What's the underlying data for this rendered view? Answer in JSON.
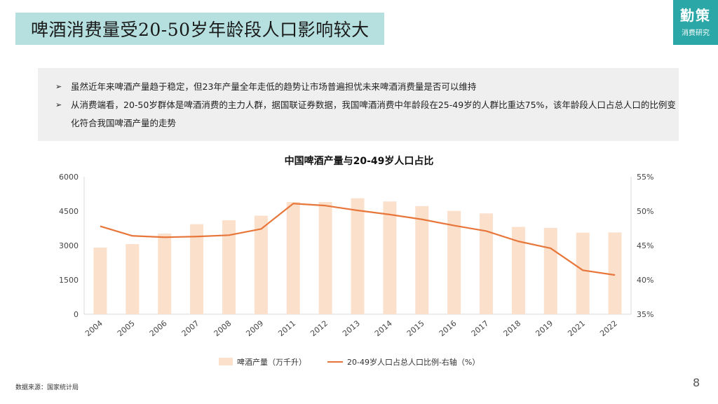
{
  "header": {
    "title": "啤酒消费量受20-50岁年龄段人口影响较大",
    "logo_big": "勤策",
    "logo_small": "消费研究"
  },
  "summary": {
    "bullets": [
      {
        "arrow": "➢",
        "text": "虽然近年来啤酒产量趋于稳定，但23年产量全年走低的趋势让市场普遍担忧未来啤酒消费量是否可以维持"
      },
      {
        "arrow": "➢",
        "text": "从消费端看，20-50岁群体是啤酒消费的主力人群，据国联证券数据，我国啤酒消费中年龄段在25-49岁的人群比重达75%，该年龄段人口占总人口的比例变化符合我国啤酒产量的走势"
      }
    ]
  },
  "chart_data": {
    "type": "bar+line",
    "title": "中国啤酒产量与20-49岁人口占比",
    "categories": [
      "2004",
      "2005",
      "2006",
      "2007",
      "2008",
      "2009",
      "2011",
      "2012",
      "2013",
      "2014",
      "2015",
      "2016",
      "2017",
      "2018",
      "2019",
      "2021",
      "2022"
    ],
    "series": [
      {
        "name": "啤酒产量（万千升）",
        "type": "bar",
        "axis": "left",
        "color": "#fbe0cc",
        "values": [
          2910,
          3060,
          3520,
          3930,
          4100,
          4300,
          4900,
          4900,
          5060,
          4920,
          4720,
          4510,
          4400,
          3810,
          3770,
          3560,
          3570
        ]
      },
      {
        "name": "20-49岁人口占总人口比例-右轴（%）",
        "type": "line",
        "axis": "right",
        "color": "#e8763a",
        "values": [
          47.8,
          46.4,
          46.2,
          46.3,
          46.5,
          47.4,
          51.1,
          50.8,
          50.1,
          49.5,
          48.8,
          47.9,
          47.1,
          45.6,
          44.6,
          41.4,
          40.7
        ]
      }
    ],
    "y_left": {
      "min": 0,
      "max": 6000,
      "ticks": [
        "0",
        "1500",
        "3000",
        "4500",
        "6000"
      ]
    },
    "y_right": {
      "min": 35,
      "max": 55,
      "ticks": [
        "35%",
        "40%",
        "45%",
        "50%",
        "55%"
      ]
    },
    "legend_position": "bottom",
    "grid": false
  },
  "footer": {
    "source": "数据来源：国家统计局",
    "page_number": "8"
  }
}
